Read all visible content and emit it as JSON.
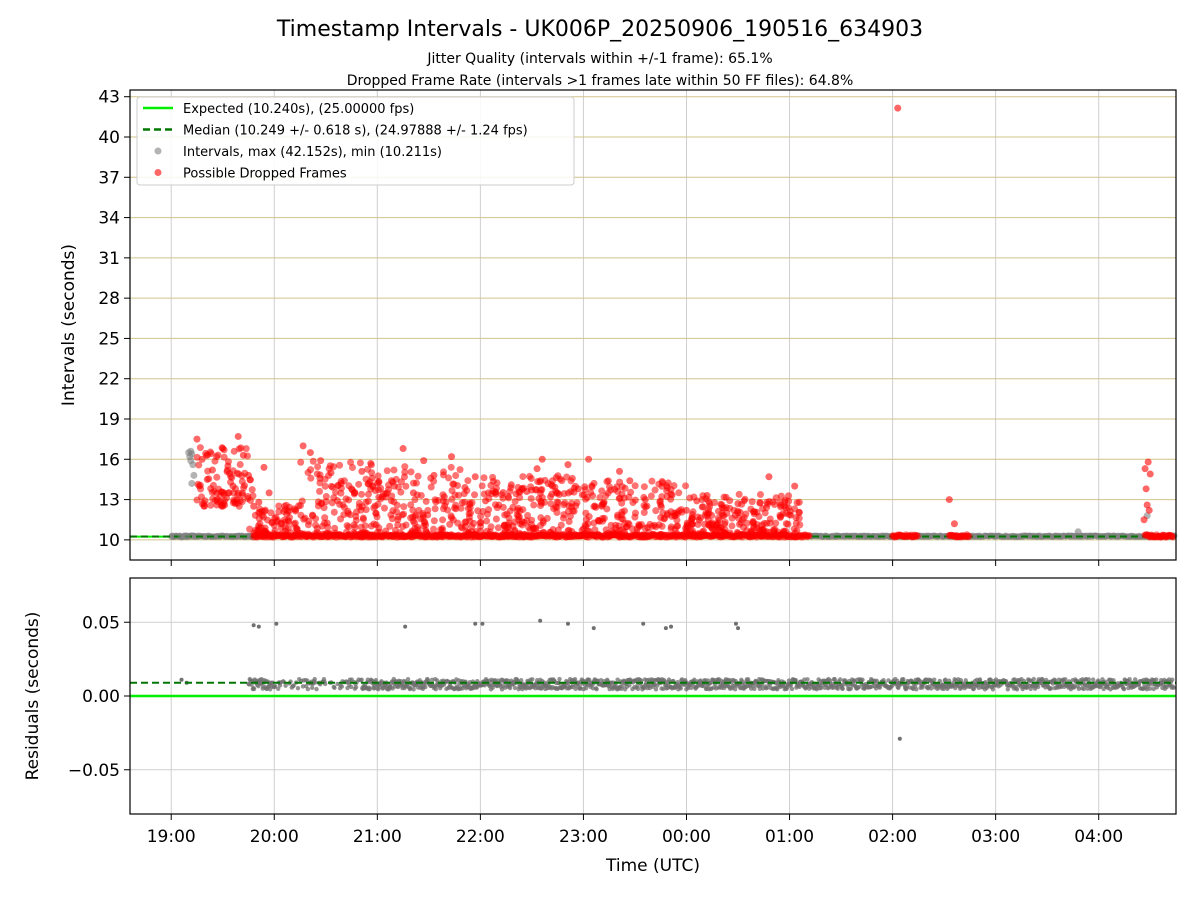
{
  "chart_data": [
    {
      "type": "scatter",
      "title": "Timestamp Intervals - UK006P_20250906_190516_634903",
      "subtitle_lines": [
        "Jitter Quality (intervals within +/-1 frame): 65.1%",
        "Dropped Frame Rate (intervals >1 frames late within 50 FF files): 64.8%"
      ],
      "ylabel": "Intervals (seconds)",
      "ylim": [
        8.5,
        43.5
      ],
      "yticks": [
        10,
        13,
        16,
        19,
        22,
        25,
        28,
        31,
        34,
        37,
        40,
        43
      ],
      "xlim_hours": [
        18.6,
        28.75
      ],
      "legend_position": "upper-left",
      "legend": [
        {
          "label": "Expected (10.240s), (25.00000 fps)",
          "kind": "line",
          "color": "#00ee00"
        },
        {
          "label": "Median (10.249 +/- 0.618 s), (24.97888 +/- 1.24 fps)",
          "kind": "dashed",
          "color": "#007700"
        },
        {
          "label": "Intervals, max (42.152s), min (10.211s)",
          "kind": "marker",
          "color": "#808080"
        },
        {
          "label": "Possible Dropped Frames",
          "kind": "marker",
          "color": "#ff0000"
        }
      ],
      "expected_interval": 10.24,
      "median_interval": 10.249,
      "series": [
        {
          "kind": "intervals",
          "color": "#808080",
          "points": [
            [
              19.1,
              10.21
            ],
            [
              19.15,
              10.23
            ],
            [
              19.17,
              16.5
            ],
            [
              19.18,
              16.2
            ],
            [
              19.19,
              15.9
            ],
            [
              19.2,
              16.4
            ],
            [
              19.21,
              15.6
            ],
            [
              19.22,
              14.8
            ],
            [
              19.19,
              16.6
            ],
            [
              19.2,
              14.2
            ],
            [
              27.8,
              10.6
            ],
            [
              28.47,
              11.8
            ],
            [
              28.73,
              10.3
            ]
          ],
          "baseline_segments": [
            [
              19.0,
              19.8
            ],
            [
              25.2,
              28.73
            ]
          ]
        },
        {
          "kind": "dropped",
          "color": "#ff0000",
          "points": [
            [
              19.25,
              17.5
            ],
            [
              19.3,
              16.0
            ],
            [
              19.35,
              14.5
            ],
            [
              19.4,
              15.2
            ],
            [
              19.45,
              13.0
            ],
            [
              19.5,
              16.8
            ],
            [
              19.55,
              15.5
            ],
            [
              19.6,
              14.0
            ],
            [
              19.65,
              17.7
            ],
            [
              19.7,
              16.3
            ],
            [
              19.75,
              14.8
            ],
            [
              19.8,
              12.5
            ],
            [
              19.85,
              12.8
            ],
            [
              19.9,
              15.4
            ],
            [
              19.95,
              13.5
            ],
            [
              20.28,
              17.0
            ],
            [
              20.35,
              16.5
            ],
            [
              20.45,
              15.9
            ],
            [
              20.55,
              15.0
            ],
            [
              20.65,
              14.2
            ],
            [
              20.75,
              13.8
            ],
            [
              20.85,
              15.1
            ],
            [
              20.95,
              14.6
            ],
            [
              21.05,
              13.2
            ],
            [
              21.15,
              14.3
            ],
            [
              21.25,
              16.8
            ],
            [
              21.35,
              13.5
            ],
            [
              21.45,
              15.9
            ],
            [
              21.55,
              14.8
            ],
            [
              21.65,
              13.2
            ],
            [
              21.72,
              16.2
            ],
            [
              21.85,
              13.9
            ],
            [
              21.95,
              14.7
            ],
            [
              22.05,
              12.9
            ],
            [
              22.15,
              13.4
            ],
            [
              22.3,
              14.1
            ],
            [
              22.45,
              13.6
            ],
            [
              22.55,
              15.3
            ],
            [
              22.6,
              16.0
            ],
            [
              22.7,
              14.0
            ],
            [
              22.85,
              15.6
            ],
            [
              22.95,
              13.8
            ],
            [
              23.05,
              16.0
            ],
            [
              23.2,
              12.8
            ],
            [
              23.35,
              15.1
            ],
            [
              23.45,
              14.4
            ],
            [
              23.6,
              13.0
            ],
            [
              23.75,
              12.6
            ],
            [
              23.85,
              13.4
            ],
            [
              24.0,
              12.2
            ],
            [
              24.1,
              12.9
            ],
            [
              24.2,
              13.3
            ],
            [
              24.35,
              12.4
            ],
            [
              24.5,
              12.7
            ],
            [
              24.65,
              12.1
            ],
            [
              24.8,
              14.7
            ],
            [
              24.95,
              12.5
            ],
            [
              25.05,
              14.0
            ],
            [
              26.05,
              42.15
            ],
            [
              26.55,
              13.0
            ],
            [
              26.6,
              11.2
            ],
            [
              28.45,
              15.3
            ],
            [
              28.48,
              15.8
            ],
            [
              28.5,
              14.9
            ],
            [
              28.46,
              13.8
            ],
            [
              28.47,
              12.6
            ],
            [
              28.44,
              11.5
            ],
            [
              28.49,
              12.2
            ]
          ],
          "baseline_segments": [
            [
              19.8,
              25.2
            ],
            [
              26.0,
              26.25
            ],
            [
              26.55,
              26.75
            ],
            [
              28.45,
              28.73
            ]
          ]
        }
      ]
    },
    {
      "type": "scatter",
      "xlabel": "Time (UTC)",
      "ylabel": "Residuals (seconds)",
      "ylim": [
        -0.08,
        0.08
      ],
      "yticks": [
        -0.05,
        0.0,
        0.05
      ],
      "ytick_labels": [
        "−0.05",
        "0.00",
        "0.05"
      ],
      "xticks_hours": [
        19,
        20,
        21,
        22,
        23,
        24,
        25,
        26,
        27,
        28
      ],
      "xtick_labels": [
        "19:00",
        "20:00",
        "21:00",
        "22:00",
        "23:00",
        "00:00",
        "01:00",
        "02:00",
        "03:00",
        "04:00"
      ],
      "expected_residual": 0.0,
      "median_residual": 0.009,
      "series": [
        {
          "kind": "residuals",
          "color": "#707070",
          "points": [
            [
              19.1,
              0.011
            ],
            [
              19.15,
              0.009
            ],
            [
              19.8,
              0.048
            ],
            [
              19.85,
              0.047
            ],
            [
              20.02,
              0.049
            ],
            [
              21.27,
              0.047
            ],
            [
              21.95,
              0.049
            ],
            [
              22.02,
              0.049
            ],
            [
              22.58,
              0.051
            ],
            [
              22.85,
              0.049
            ],
            [
              23.1,
              0.046
            ],
            [
              23.58,
              0.049
            ],
            [
              23.8,
              0.046
            ],
            [
              23.85,
              0.047
            ],
            [
              24.48,
              0.049
            ],
            [
              24.5,
              0.046
            ],
            [
              26.07,
              -0.029
            ]
          ],
          "band": {
            "x_start": 19.75,
            "x_end": 28.73,
            "center": 0.008,
            "spread": 0.0035
          }
        }
      ]
    }
  ]
}
